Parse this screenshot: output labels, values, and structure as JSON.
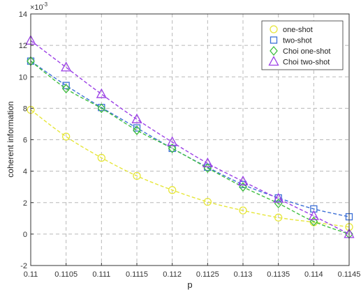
{
  "chart_data": {
    "type": "line",
    "xlabel": "p",
    "ylabel": "coherent information",
    "y_multiplier_label": "×10",
    "y_multiplier_exponent": "-3",
    "xlim": [
      0.11,
      0.1145
    ],
    "ylim": [
      -2,
      14
    ],
    "xticks": [
      0.11,
      0.1105,
      0.111,
      0.1115,
      0.112,
      0.1125,
      0.113,
      0.1135,
      0.114,
      0.1145
    ],
    "xtick_labels": [
      "0.11",
      "0.1105",
      "0.111",
      "0.1115",
      "0.112",
      "0.1125",
      "0.113",
      "0.1135",
      "0.114",
      "0.1145"
    ],
    "yticks": [
      -2,
      0,
      2,
      4,
      6,
      8,
      10,
      12,
      14
    ],
    "ytick_labels": [
      "-2",
      "0",
      "2",
      "4",
      "6",
      "8",
      "10",
      "12",
      "14"
    ],
    "grid": true,
    "legend_position": "top-right",
    "x": [
      0.11,
      0.1105,
      0.111,
      0.1115,
      0.112,
      0.1125,
      0.113,
      0.1135,
      0.114,
      0.1145
    ],
    "series": [
      {
        "name": "one-shot",
        "marker": "circle",
        "color": "#e6e63a",
        "values": [
          7.9,
          6.2,
          4.85,
          3.7,
          2.8,
          2.05,
          1.5,
          1.05,
          0.75,
          0.45
        ]
      },
      {
        "name": "two-shot",
        "marker": "square",
        "color": "#3b6fd6",
        "values": [
          11.0,
          9.45,
          8.05,
          6.75,
          5.45,
          4.25,
          3.15,
          2.3,
          1.6,
          1.1
        ]
      },
      {
        "name": "Choi one-shot",
        "marker": "diamond",
        "color": "#3fbf3f",
        "values": [
          11.0,
          9.25,
          8.0,
          6.6,
          5.45,
          4.2,
          3.0,
          1.95,
          0.8,
          0.0
        ]
      },
      {
        "name": "Choi two-shot",
        "marker": "triangle",
        "color": "#9b3fe6",
        "values": [
          12.3,
          10.6,
          8.9,
          7.3,
          5.85,
          4.5,
          3.35,
          2.25,
          1.15,
          0.0
        ]
      }
    ]
  }
}
